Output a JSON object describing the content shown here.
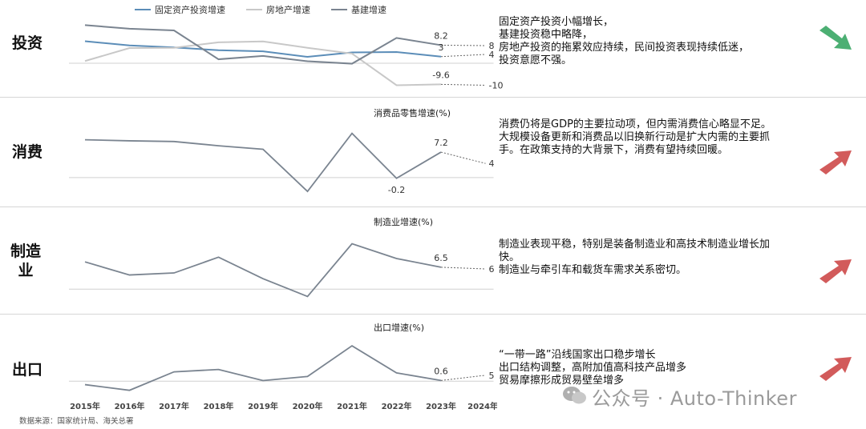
{
  "legend": [
    "固定资产投资增速",
    "房地产增速",
    "基建增速"
  ],
  "colors": {
    "fixed": "#5b8db8",
    "realestate": "#c8c8c8",
    "infra": "#7a8490",
    "single": "#7a8490",
    "dotted": "#666666",
    "up_arrow": "#d25b5b",
    "down_arrow": "#4caf73"
  },
  "rows": [
    {
      "label": "投资",
      "title": "",
      "desc": [
        "固定资产投资小幅增长，",
        "基建投资稳中略降，",
        "房地产投资的拖累效应持续，民间投资表现持续低迷，",
        "投资意愿不强。"
      ],
      "arrow": "down-right"
    },
    {
      "label": "消费",
      "title": "消费品零售增速(%)",
      "desc": [
        "消费仍将是GDP的主要拉动项，但内需消费信心略显不足。",
        "大规模设备更新和消费品以旧换新行动是扩大内需的主要抓手。在政策支持的大背景下，消费有望持续回暖。"
      ],
      "arrow": "up-right"
    },
    {
      "label": "制造业",
      "title": "制造业增速(%)",
      "desc": [
        "制造业表现平稳，特别是装备制造业和高技术制造业增长加快。",
        "制造业与牵引车和载货车需求关系密切。"
      ],
      "arrow": "up-right"
    },
    {
      "label": "出口",
      "title": "出口增速(%)",
      "desc": [
        "“一带一路”沿线国家出口稳步增长",
        "出口结构调整，高附加值高科技产品增多",
        "贸易摩擦形成贸易壁垒增多"
      ],
      "arrow": "up-right"
    }
  ],
  "source": "数据来源：国家统计局、海关总署",
  "watermark": "公众号 · Auto-Thinker",
  "chart_data": [
    {
      "type": "line",
      "x": [
        "2015年",
        "2016年",
        "2017年",
        "2018年",
        "2019年",
        "2020年",
        "2021年",
        "2022年",
        "2023年",
        "2024年F"
      ],
      "series": [
        {
          "name": "固定资产投资增速",
          "values": [
            10.0,
            8.1,
            7.2,
            5.9,
            5.4,
            2.9,
            4.9,
            5.1,
            3.0,
            null
          ],
          "forecast": 4
        },
        {
          "name": "房地产增速",
          "values": [
            1.0,
            6.9,
            7.0,
            9.5,
            9.9,
            7.0,
            4.4,
            -10.0,
            -9.6,
            null
          ],
          "forecast": -10
        },
        {
          "name": "基建增速",
          "values": [
            17.3,
            15.7,
            14.9,
            1.8,
            3.3,
            0.9,
            -0.2,
            11.5,
            8.2,
            null
          ],
          "forecast": 8
        }
      ],
      "labels": [
        {
          "series": "基建增速",
          "x": "2023年",
          "text": "8.2"
        },
        {
          "series": "固定资产投资增速",
          "x": "2023年",
          "text": "3"
        },
        {
          "series": "房地产增速",
          "x": "2023年",
          "text": "-9.6"
        }
      ],
      "forecast_labels": [
        "8",
        "4",
        "-10"
      ],
      "ylim": [
        -12,
        20
      ]
    },
    {
      "type": "line",
      "title": "消费品零售增速(%)",
      "x": [
        "2015年",
        "2016年",
        "2017年",
        "2018年",
        "2019年",
        "2020年",
        "2021年",
        "2022年",
        "2023年",
        "2024年F"
      ],
      "series": [
        {
          "name": "消费品零售增速(%)",
          "values": [
            10.7,
            10.4,
            10.2,
            9.0,
            8.0,
            -3.9,
            12.5,
            -0.2,
            7.2,
            null
          ],
          "forecast": 4
        }
      ],
      "labels": [
        {
          "x": "2023年",
          "text": "7.2"
        },
        {
          "x": "2022年",
          "text": "-0.2"
        }
      ],
      "forecast_labels": [
        "4"
      ],
      "ylim": [
        -5,
        14
      ]
    },
    {
      "type": "line",
      "title": "制造业增速(%)",
      "x": [
        "2015年",
        "2016年",
        "2017年",
        "2018年",
        "2019年",
        "2020年",
        "2021年",
        "2022年",
        "2023年",
        "2024年F"
      ],
      "series": [
        {
          "name": "制造业增速(%)",
          "values": [
            8.1,
            4.2,
            4.8,
            9.5,
            3.1,
            -2.2,
            13.5,
            9.1,
            6.5,
            null
          ],
          "forecast": 6
        }
      ],
      "labels": [
        {
          "x": "2023年",
          "text": "6.5"
        }
      ],
      "forecast_labels": [
        "6"
      ],
      "ylim": [
        -4,
        16
      ]
    },
    {
      "type": "line",
      "title": "出口增速(%)",
      "x": [
        "2015年",
        "2016年",
        "2017年",
        "2018年",
        "2019年",
        "2020年",
        "2021年",
        "2022年",
        "2023年",
        "2024年F"
      ],
      "series": [
        {
          "name": "出口增速(%)",
          "values": [
            -2.9,
            -7.7,
            7.9,
            9.9,
            0.5,
            4.0,
            29.9,
            7.0,
            0.6,
            null
          ],
          "forecast": 5
        }
      ],
      "labels": [
        {
          "x": "2023年",
          "text": "0.6"
        }
      ],
      "forecast_labels": [
        "5"
      ],
      "ylim": [
        -12,
        34
      ]
    }
  ]
}
